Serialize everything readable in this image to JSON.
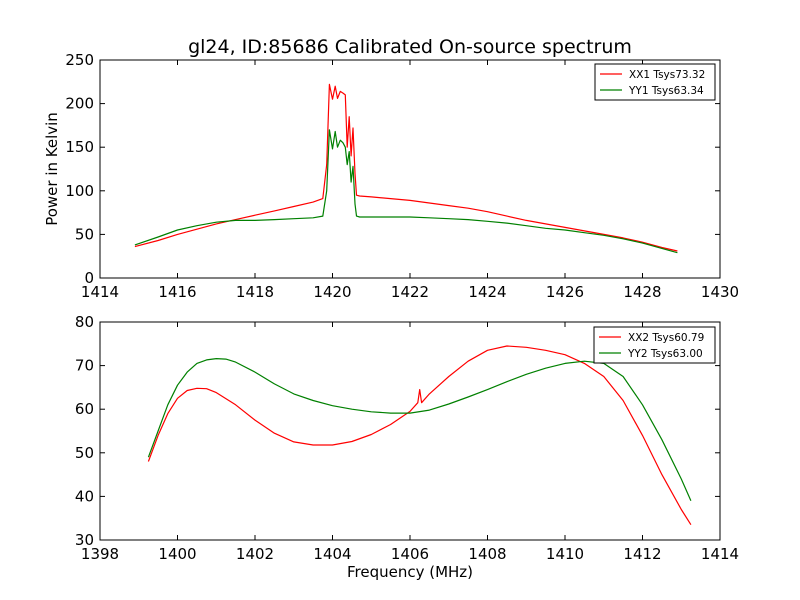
{
  "chart_data": [
    {
      "type": "line",
      "title": "gl24, ID:85686 Calibrated On-source spectrum",
      "xlabel": "",
      "ylabel": "Power in Kelvin",
      "xlim": [
        1414,
        1430
      ],
      "ylim": [
        0,
        250
      ],
      "xticks": [
        1414,
        1416,
        1418,
        1420,
        1422,
        1424,
        1426,
        1428,
        1430
      ],
      "yticks": [
        0,
        50,
        100,
        150,
        200,
        250
      ],
      "grid": false,
      "legend": "top-right",
      "series": [
        {
          "name": "XX1 Tsys73.32",
          "color": "#ff0000",
          "x": [
            1414.9,
            1415.5,
            1416.0,
            1416.5,
            1417.0,
            1417.5,
            1418.0,
            1418.5,
            1419.0,
            1419.5,
            1419.75,
            1419.85,
            1419.92,
            1420.0,
            1420.07,
            1420.13,
            1420.2,
            1420.27,
            1420.33,
            1420.38,
            1420.43,
            1420.48,
            1420.53,
            1420.58,
            1420.62,
            1420.7,
            1421.0,
            1421.5,
            1422.0,
            1422.5,
            1423.0,
            1423.5,
            1424.0,
            1424.5,
            1425.0,
            1425.5,
            1426.0,
            1426.5,
            1427.0,
            1427.5,
            1428.0,
            1428.5,
            1428.9
          ],
          "y": [
            36,
            43,
            50,
            56,
            62,
            67,
            72,
            77,
            82,
            87,
            91,
            130,
            222,
            205,
            220,
            206,
            214,
            212,
            210,
            150,
            185,
            140,
            172,
            120,
            95,
            94,
            93,
            91,
            89,
            86,
            83,
            80,
            76,
            71,
            66,
            62,
            58,
            54,
            50,
            46,
            41,
            35,
            31
          ]
        },
        {
          "name": "YY1 Tsys63.34",
          "color": "#008000",
          "x": [
            1414.9,
            1415.5,
            1416.0,
            1416.5,
            1417.0,
            1417.5,
            1418.0,
            1418.5,
            1419.0,
            1419.5,
            1419.75,
            1419.85,
            1419.92,
            1420.0,
            1420.07,
            1420.13,
            1420.2,
            1420.27,
            1420.33,
            1420.38,
            1420.43,
            1420.48,
            1420.53,
            1420.58,
            1420.62,
            1420.7,
            1421.0,
            1421.5,
            1422.0,
            1422.5,
            1423.0,
            1423.5,
            1424.0,
            1424.5,
            1425.0,
            1425.5,
            1426.0,
            1426.5,
            1427.0,
            1427.5,
            1428.0,
            1428.5,
            1428.9
          ],
          "y": [
            38,
            47,
            55,
            60,
            64,
            66,
            66,
            67,
            68,
            69,
            71,
            100,
            170,
            148,
            168,
            150,
            158,
            155,
            150,
            130,
            145,
            110,
            128,
            85,
            71,
            70,
            70,
            70,
            70,
            69,
            68,
            67,
            65,
            63,
            60,
            57,
            55,
            52,
            49,
            45,
            40,
            34,
            29
          ]
        }
      ]
    },
    {
      "type": "line",
      "title": "",
      "xlabel": "Frequency (MHz)",
      "ylabel": "",
      "xlim": [
        1398,
        1414
      ],
      "ylim": [
        30,
        80
      ],
      "xticks": [
        1398,
        1400,
        1402,
        1404,
        1406,
        1408,
        1410,
        1412,
        1414
      ],
      "yticks": [
        30,
        40,
        50,
        60,
        70,
        80
      ],
      "grid": false,
      "legend": "top-right",
      "series": [
        {
          "name": "XX2 Tsys60.79",
          "color": "#ff0000",
          "x": [
            1399.25,
            1399.5,
            1399.75,
            1400.0,
            1400.25,
            1400.5,
            1400.75,
            1401.0,
            1401.5,
            1402.0,
            1402.5,
            1403.0,
            1403.5,
            1404.0,
            1404.5,
            1405.0,
            1405.5,
            1406.0,
            1406.2,
            1406.25,
            1406.3,
            1406.5,
            1407.0,
            1407.5,
            1408.0,
            1408.5,
            1409.0,
            1409.5,
            1410.0,
            1410.5,
            1411.0,
            1411.5,
            1412.0,
            1412.5,
            1413.0,
            1413.25
          ],
          "y": [
            48,
            54,
            59,
            62.5,
            64.3,
            64.8,
            64.7,
            63.8,
            61,
            57.5,
            54.5,
            52.5,
            51.8,
            51.8,
            52.6,
            54.2,
            56.5,
            59.5,
            61.5,
            64.5,
            61.5,
            63.5,
            67.5,
            71,
            73.5,
            74.5,
            74.2,
            73.5,
            72.5,
            70.5,
            67.5,
            62,
            54,
            45,
            37,
            33.5
          ]
        },
        {
          "name": "YY2 Tsys63.00",
          "color": "#008000",
          "x": [
            1399.25,
            1399.5,
            1399.75,
            1400.0,
            1400.25,
            1400.5,
            1400.75,
            1401.0,
            1401.25,
            1401.5,
            1402.0,
            1402.5,
            1403.0,
            1403.5,
            1404.0,
            1404.5,
            1405.0,
            1405.5,
            1406.0,
            1406.5,
            1407.0,
            1407.5,
            1408.0,
            1408.5,
            1409.0,
            1409.5,
            1410.0,
            1410.5,
            1411.0,
            1411.5,
            1412.0,
            1412.5,
            1413.0,
            1413.25
          ],
          "y": [
            49,
            55,
            61,
            65.5,
            68.5,
            70.5,
            71.3,
            71.6,
            71.5,
            70.8,
            68.5,
            65.8,
            63.5,
            62,
            60.8,
            60,
            59.4,
            59.1,
            59.1,
            59.8,
            61.2,
            62.8,
            64.5,
            66.3,
            68,
            69.4,
            70.5,
            71,
            70.5,
            67.5,
            61,
            53,
            44,
            39
          ]
        }
      ]
    }
  ]
}
